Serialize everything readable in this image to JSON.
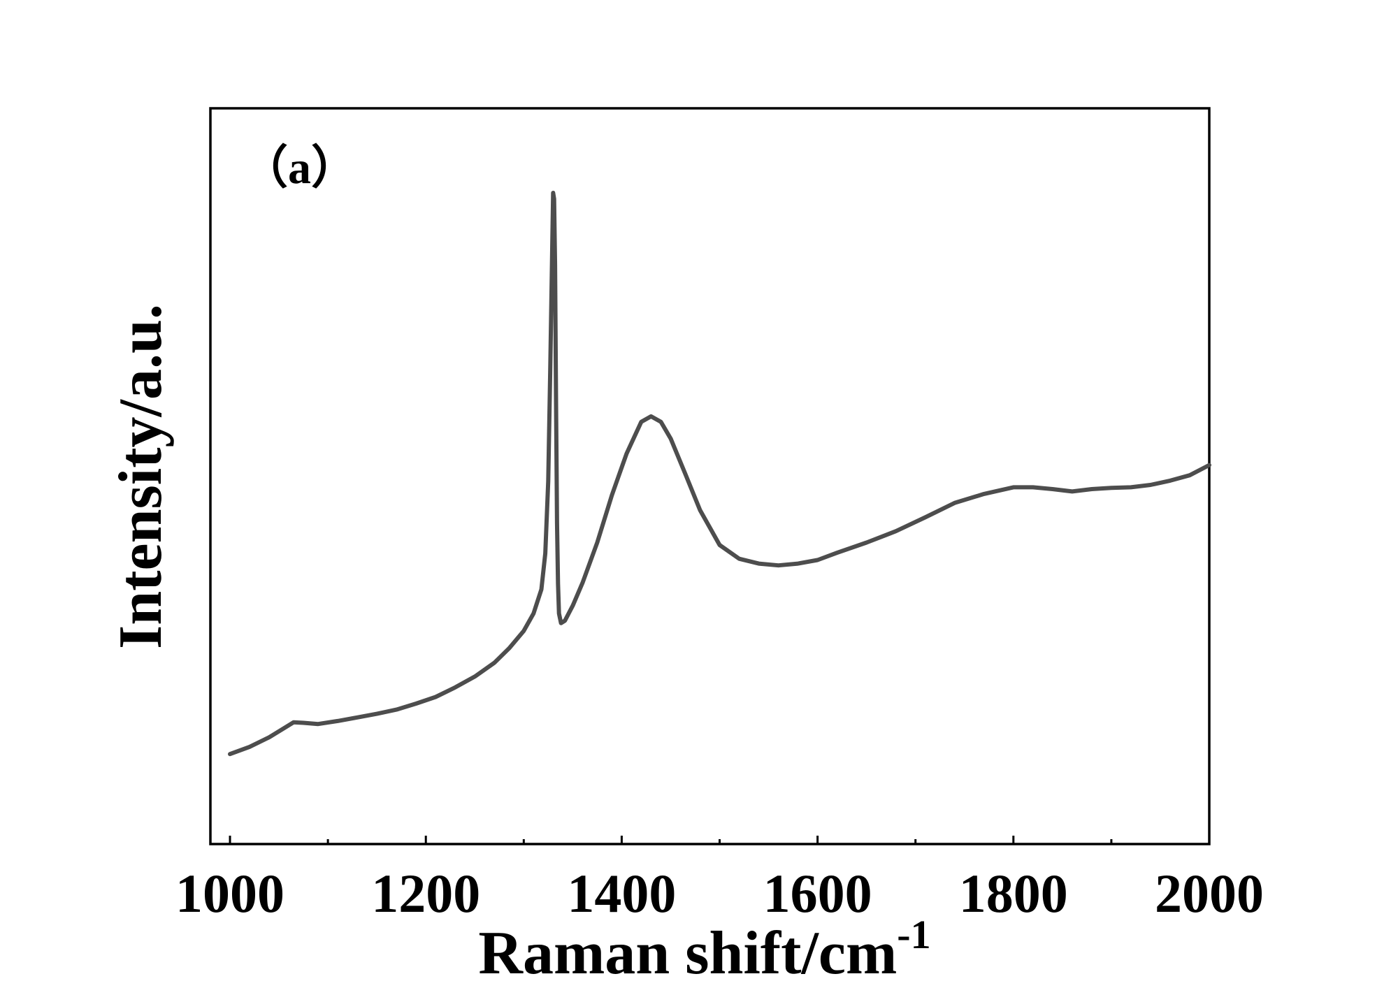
{
  "chart_data": {
    "type": "line",
    "title": "",
    "panel_label": "（a）",
    "xlabel": "Raman shift/cm",
    "xlabel_superscript": "-1",
    "ylabel": "Intensity/a.u.",
    "xlim": [
      980,
      2000
    ],
    "ylim": [
      0,
      100
    ],
    "x_ticks": [
      1000,
      1200,
      1400,
      1600,
      1800,
      2000
    ],
    "x_minor_ticks": [
      1100,
      1300,
      1500,
      1700,
      1900
    ],
    "y_ticks_shown": false,
    "grid": false,
    "line_color": "#4d4d4d",
    "series": [
      {
        "x": [
          1000,
          1020,
          1040,
          1055,
          1065,
          1075,
          1090,
          1110,
          1130,
          1150,
          1170,
          1190,
          1210,
          1230,
          1250,
          1270,
          1285,
          1300,
          1310,
          1318,
          1322,
          1325,
          1327,
          1329,
          1330,
          1331,
          1332,
          1333,
          1334,
          1335,
          1336,
          1338,
          1342,
          1350,
          1360,
          1375,
          1390,
          1405,
          1420,
          1430,
          1440,
          1450,
          1465,
          1480,
          1500,
          1520,
          1540,
          1560,
          1580,
          1600,
          1620,
          1650,
          1680,
          1710,
          1740,
          1770,
          1800,
          1820,
          1840,
          1860,
          1880,
          1900,
          1920,
          1940,
          1960,
          1980,
          2000
        ],
        "y": [
          6.6,
          7.8,
          9.4,
          10.9,
          11.9,
          11.8,
          11.6,
          12.1,
          12.7,
          13.3,
          14.0,
          15.0,
          16.1,
          17.7,
          19.5,
          21.8,
          24.2,
          27.1,
          30.0,
          34.0,
          40.0,
          52.0,
          70.0,
          90.0,
          100.0,
          99.0,
          88.0,
          65.0,
          45.0,
          35.0,
          30.0,
          28.4,
          28.8,
          31.3,
          35.1,
          41.8,
          49.7,
          56.6,
          61.9,
          62.8,
          61.9,
          59.1,
          53.2,
          47.2,
          41.4,
          39.1,
          38.3,
          38.0,
          38.3,
          38.9,
          40.1,
          41.8,
          43.7,
          46.0,
          48.4,
          49.9,
          51.0,
          51.0,
          50.7,
          50.3,
          50.7,
          50.9,
          51.0,
          51.4,
          52.1,
          53.0,
          54.7
        ]
      }
    ]
  }
}
